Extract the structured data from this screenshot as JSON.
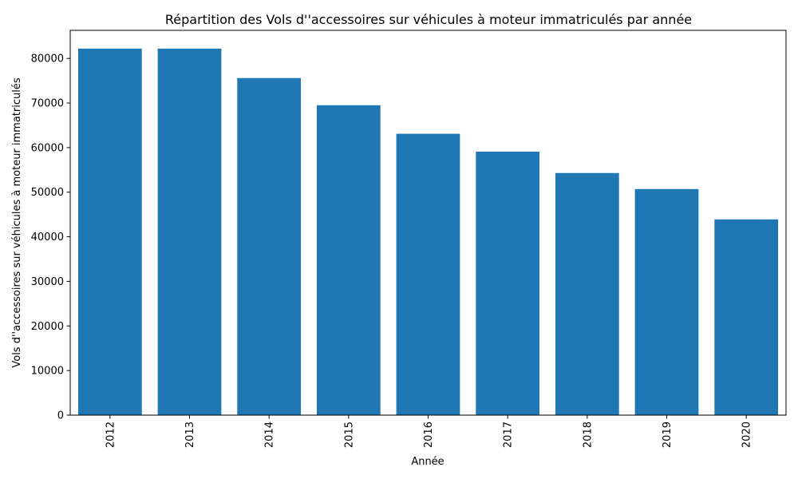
{
  "chart_data": {
    "type": "bar",
    "title": "Répartition des Vols d''accessoires sur véhicules à moteur immatriculés par année",
    "xlabel": "Année",
    "ylabel": "Vols d''accessoires sur véhicules à moteur immatriculés",
    "categories": [
      "2012",
      "2013",
      "2014",
      "2015",
      "2016",
      "2017",
      "2018",
      "2019",
      "2020"
    ],
    "values": [
      82200,
      82200,
      75600,
      69500,
      63100,
      59100,
      54300,
      50700,
      43900
    ],
    "ylim": [
      0,
      86300
    ],
    "yticks": [
      0,
      10000,
      20000,
      30000,
      40000,
      50000,
      60000,
      70000,
      80000
    ],
    "bar_color": "#1f77b4",
    "grid": false,
    "legend": "none",
    "x_tick_rotation": "vertical"
  }
}
